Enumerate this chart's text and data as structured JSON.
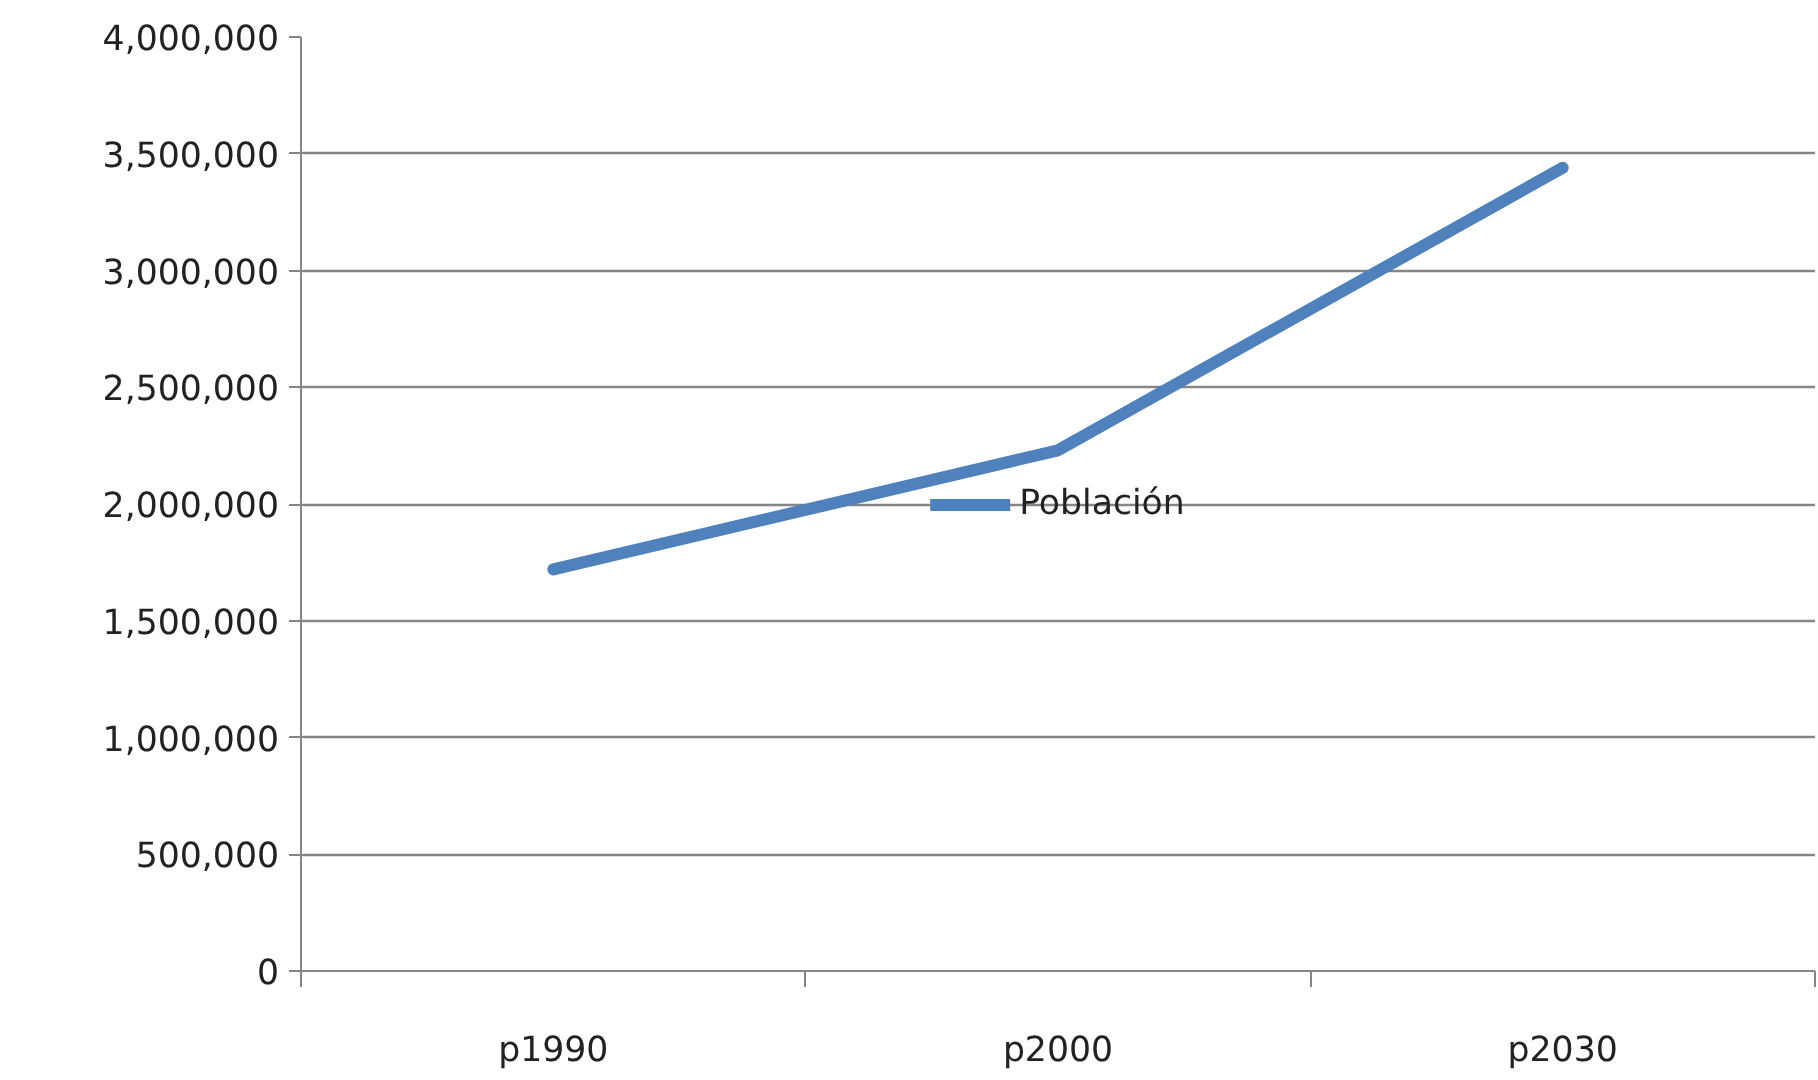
{
  "chart_data": {
    "type": "line",
    "categories": [
      "p1990",
      "p2000",
      "p2030"
    ],
    "series": [
      {
        "name": "Población",
        "color": "#4f81bd",
        "values": [
          1720000,
          2230000,
          3440000
        ]
      }
    ],
    "ylim": [
      0,
      4000000
    ],
    "yticks": [
      {
        "value": 0,
        "label": "0"
      },
      {
        "value": 500000,
        "label": "500,000"
      },
      {
        "value": 1000000,
        "label": "1,000,000"
      },
      {
        "value": 1500000,
        "label": "1,500,000"
      },
      {
        "value": 2000000,
        "label": "2,000,000"
      },
      {
        "value": 2500000,
        "label": "2,500,000"
      },
      {
        "value": 3000000,
        "label": "3,000,000"
      },
      {
        "value": 3500000,
        "label": "3,500,000"
      },
      {
        "value": 4000000,
        "label": "4,000,000"
      }
    ],
    "grid": "y",
    "legend": "center",
    "marker": "none",
    "line_style": "solid"
  }
}
